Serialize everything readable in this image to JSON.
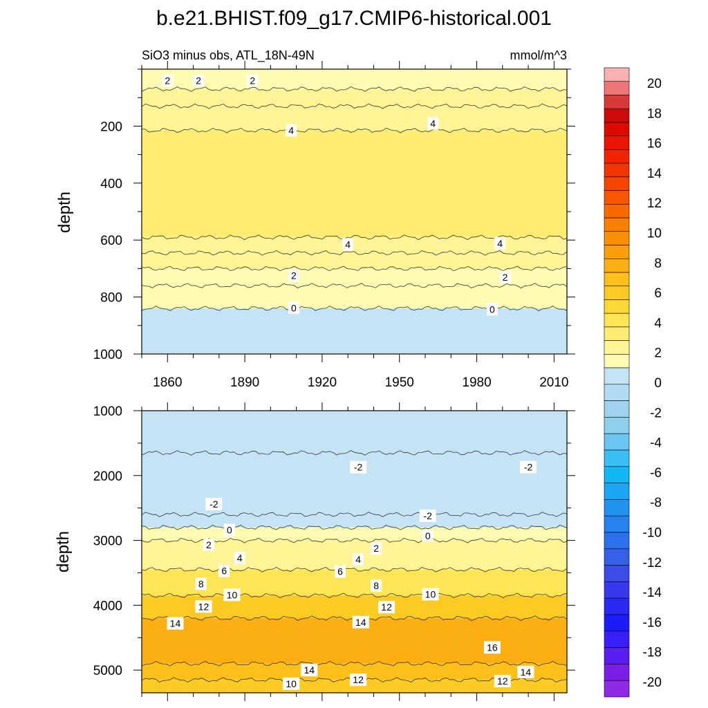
{
  "chart_data": {
    "type": "contour",
    "title": "b.e21.BHIST.f09_g17.CMIP6-historical.001",
    "units": "mmol/m^3",
    "colors": {
      "neg": [
        "#c4e4f5",
        "#b1dbf2",
        "#9ed2ee",
        "#8ecfee",
        "#6ac6f1",
        "#3bbdf5",
        "#12b7f5",
        "#1aa6f3",
        "#2093f1",
        "#2582ef",
        "#2c71ec",
        "#3560e8",
        "#3b4de6",
        "#3838ec",
        "#2a2af2",
        "#1c1cf8",
        "#3a1ef8",
        "#5a1ef2",
        "#7a1ee8",
        "#8e2ae4"
      ],
      "pos": [
        "#fefcb2",
        "#fff496",
        "#feec73",
        "#fde556",
        "#fcd836",
        "#fccb23",
        "#fdc01b",
        "#fbaf13",
        "#fa9f0b",
        "#f98f05",
        "#f97f00",
        "#f86a00",
        "#f65700",
        "#f44600",
        "#f33500",
        "#f12300",
        "#ea1400",
        "#dd0a00",
        "#cc0a0a",
        "#d83a3a",
        "#ee7676",
        "#f8b0b0"
      ]
    },
    "colorbar": {
      "min": -20,
      "max": 20,
      "step": 2,
      "tick_labels": [
        "20",
        "18",
        "16",
        "14",
        "12",
        "10",
        "8",
        "6",
        "4",
        "2",
        "0",
        "-2",
        "-4",
        "-6",
        "-8",
        "-10",
        "-12",
        "-14",
        "-16",
        "-18",
        "-20"
      ]
    },
    "panels": [
      {
        "subtitle_left": "SiO3 minus obs, ATL_18N-49N",
        "subtitle_right": "mmol/m^3",
        "ylabel": "depth",
        "xlim": [
          1850,
          2015
        ],
        "ylim": [
          1000,
          0
        ],
        "xticks": [
          1860,
          1890,
          1920,
          1950,
          1980,
          2010
        ],
        "xtick_labels": [
          "1860",
          "1890",
          "1920",
          "1950",
          "1980",
          "2010"
        ],
        "yticks": [
          200,
          400,
          600,
          800,
          1000
        ],
        "ytick_labels": [
          "200",
          "400",
          "600",
          "800",
          "1000"
        ],
        "bands_from_top": [
          {
            "value": 1.5,
            "top": 0,
            "bottom": 70
          },
          {
            "value": 2.5,
            "top": 70,
            "bottom": 130
          },
          {
            "value": 3.5,
            "top": 130,
            "bottom": 215
          },
          {
            "value": 4.5,
            "top": 215,
            "bottom": 590
          },
          {
            "value": 3.5,
            "top": 590,
            "bottom": 645
          },
          {
            "value": 2.5,
            "top": 645,
            "bottom": 700
          },
          {
            "value": 1.5,
            "top": 700,
            "bottom": 760
          },
          {
            "value": 0.5,
            "top": 760,
            "bottom": 840
          },
          {
            "value": -0.5,
            "top": 840,
            "bottom": 1000
          }
        ],
        "contour_labels": [
          {
            "text": "2",
            "x": 1860,
            "y": 40
          },
          {
            "text": "2",
            "x": 1872,
            "y": 40
          },
          {
            "text": "2",
            "x": 1893,
            "y": 40
          },
          {
            "text": "4",
            "x": 1908,
            "y": 215
          },
          {
            "text": "4",
            "x": 1963,
            "y": 190
          },
          {
            "text": "4",
            "x": 1930,
            "y": 615
          },
          {
            "text": "4",
            "x": 1989,
            "y": 612
          },
          {
            "text": "2",
            "x": 1909,
            "y": 725
          },
          {
            "text": "2",
            "x": 1991,
            "y": 730
          },
          {
            "text": "0",
            "x": 1909,
            "y": 838
          },
          {
            "text": "0",
            "x": 1986,
            "y": 843
          }
        ]
      },
      {
        "subtitle_left": "",
        "subtitle_right": "",
        "ylabel": "depth",
        "xlim": [
          1850,
          2015
        ],
        "ylim": [
          5350,
          1000
        ],
        "xticks": [
          1860,
          1890,
          1920,
          1950,
          1980,
          2010
        ],
        "xtick_labels": [],
        "yticks": [
          1000,
          2000,
          3000,
          4000,
          5000
        ],
        "ytick_labels": [
          "1000",
          "2000",
          "3000",
          "4000",
          "5000"
        ],
        "bands_from_top": [
          {
            "value": -0.5,
            "top": 1000,
            "bottom": 1650
          },
          {
            "value": -1.5,
            "top": 1650,
            "bottom": 2600
          },
          {
            "value": -1.0,
            "top": 2600,
            "bottom": 2800
          },
          {
            "value": 0.5,
            "top": 2800,
            "bottom": 3000
          },
          {
            "value": 3.0,
            "top": 3000,
            "bottom": 3450
          },
          {
            "value": 7.0,
            "top": 3450,
            "bottom": 3850
          },
          {
            "value": 11.0,
            "top": 3850,
            "bottom": 4200
          },
          {
            "value": 14.5,
            "top": 4200,
            "bottom": 4900
          },
          {
            "value": 13.0,
            "top": 4900,
            "bottom": 5150
          },
          {
            "value": 11.0,
            "top": 5150,
            "bottom": 5350
          }
        ],
        "contour_labels": [
          {
            "text": "-2",
            "x": 1934,
            "y": 1870
          },
          {
            "text": "-2",
            "x": 2000,
            "y": 1870
          },
          {
            "text": "-2",
            "x": 1878,
            "y": 2440
          },
          {
            "text": "-2",
            "x": 1961,
            "y": 2620
          },
          {
            "text": "0",
            "x": 1884,
            "y": 2840
          },
          {
            "text": "0",
            "x": 1961,
            "y": 2930
          },
          {
            "text": "2",
            "x": 1876,
            "y": 3070
          },
          {
            "text": "2",
            "x": 1941,
            "y": 3120
          },
          {
            "text": "4",
            "x": 1888,
            "y": 3270
          },
          {
            "text": "4",
            "x": 1934,
            "y": 3290
          },
          {
            "text": "6",
            "x": 1882,
            "y": 3470
          },
          {
            "text": "6",
            "x": 1927,
            "y": 3480
          },
          {
            "text": "8",
            "x": 1873,
            "y": 3670
          },
          {
            "text": "8",
            "x": 1941,
            "y": 3700
          },
          {
            "text": "10",
            "x": 1885,
            "y": 3840
          },
          {
            "text": "10",
            "x": 1962,
            "y": 3830
          },
          {
            "text": "12",
            "x": 1874,
            "y": 4020
          },
          {
            "text": "12",
            "x": 1945,
            "y": 4030
          },
          {
            "text": "14",
            "x": 1863,
            "y": 4280
          },
          {
            "text": "14",
            "x": 1935,
            "y": 4260
          },
          {
            "text": "16",
            "x": 1986,
            "y": 4650
          },
          {
            "text": "14",
            "x": 1915,
            "y": 5000
          },
          {
            "text": "14",
            "x": 1999,
            "y": 5030
          },
          {
            "text": "12",
            "x": 1934,
            "y": 5150
          },
          {
            "text": "12",
            "x": 1990,
            "y": 5170
          },
          {
            "text": "10",
            "x": 1908,
            "y": 5210
          }
        ]
      }
    ]
  }
}
